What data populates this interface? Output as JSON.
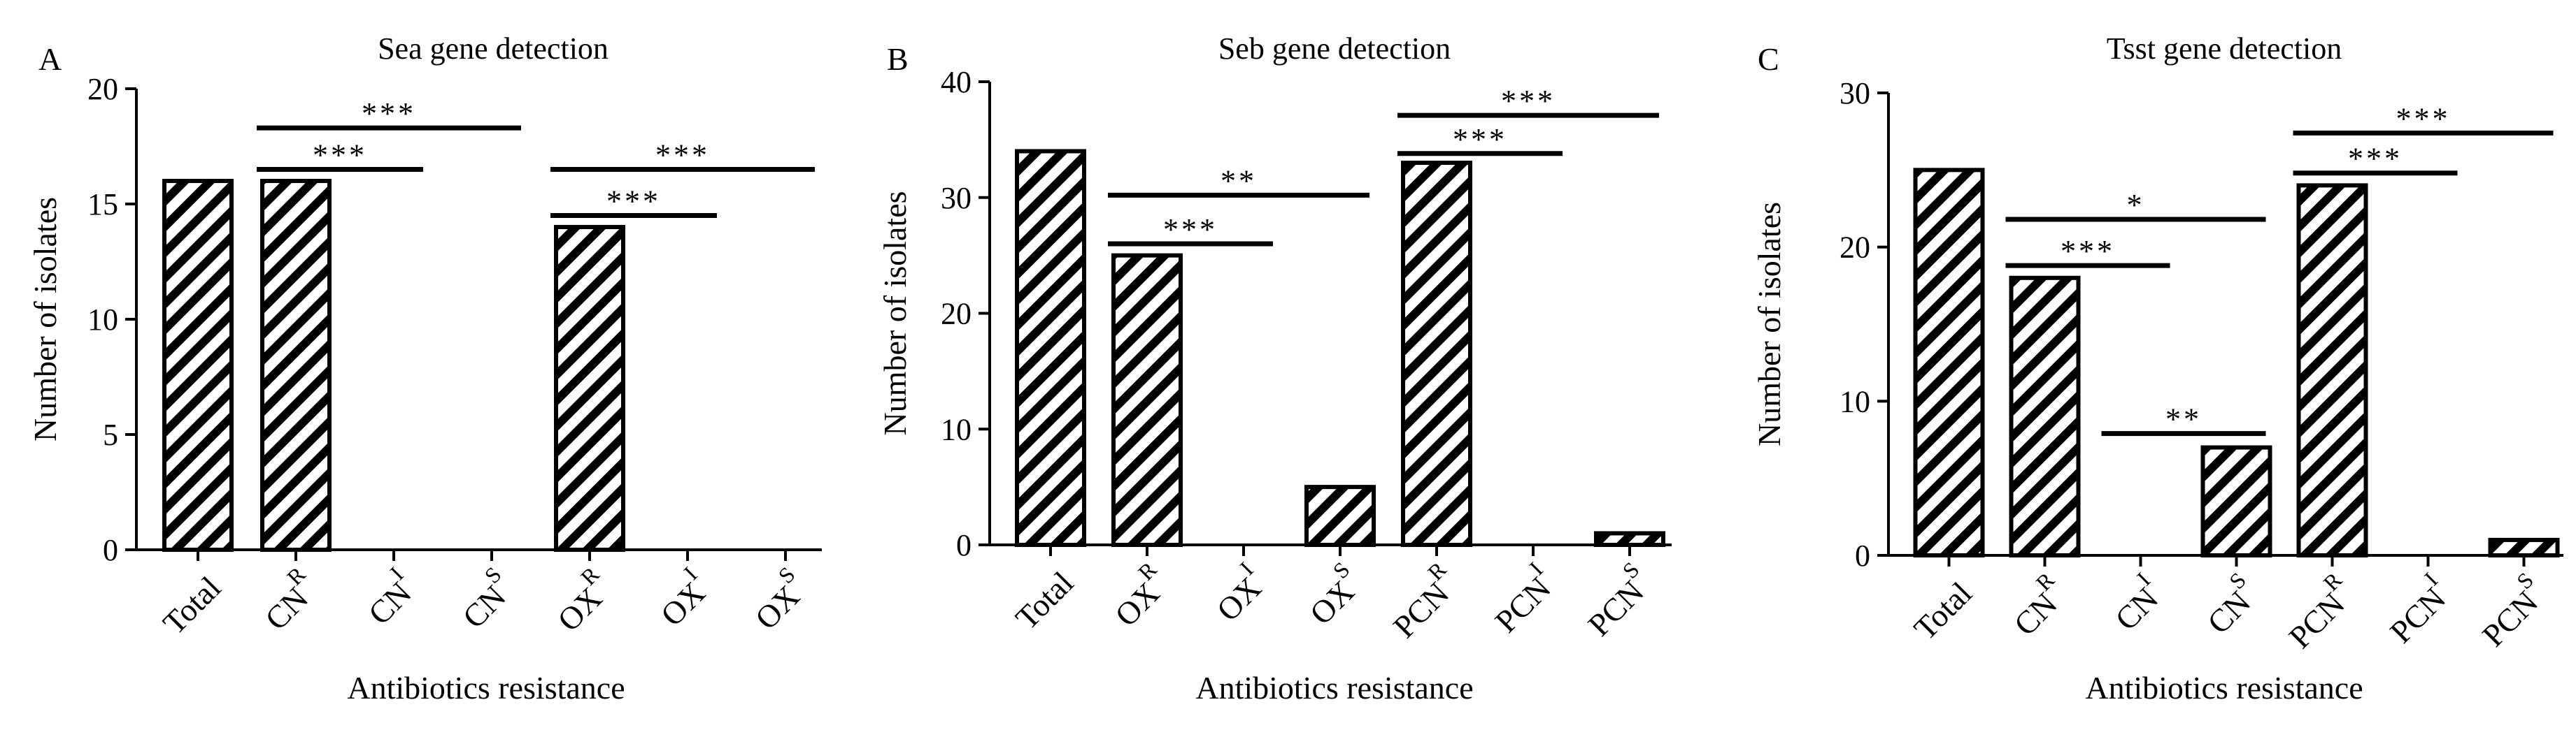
{
  "chart_data": [
    {
      "type": "bar",
      "panel_label": "A",
      "title": "Sea gene detection",
      "xlabel": "Antibiotics resistance",
      "ylabel": "Number of isolates",
      "ylim": [
        0,
        20
      ],
      "yticks": [
        0,
        5,
        10,
        15,
        20
      ],
      "grid": false,
      "categories": [
        {
          "base": "Total",
          "sup": ""
        },
        {
          "base": "CN",
          "sup": "R"
        },
        {
          "base": "CN",
          "sup": "I"
        },
        {
          "base": "CN",
          "sup": "S"
        },
        {
          "base": "OX",
          "sup": "R"
        },
        {
          "base": "OX",
          "sup": "I"
        },
        {
          "base": "OX",
          "sup": "S"
        }
      ],
      "values": [
        16,
        16,
        0,
        0,
        14,
        0,
        0
      ],
      "annotations": [
        {
          "from": 1,
          "to": 2,
          "y": 16.5,
          "label": "***"
        },
        {
          "from": 1,
          "to": 3,
          "y": 18.3,
          "label": "***"
        },
        {
          "from": 4,
          "to": 5,
          "y": 14.5,
          "label": "***"
        },
        {
          "from": 4,
          "to": 6,
          "y": 16.5,
          "label": "***"
        }
      ]
    },
    {
      "type": "bar",
      "panel_label": "B",
      "title": "Seb gene detection",
      "xlabel": "Antibiotics resistance",
      "ylabel": "Number of isolates",
      "ylim": [
        0,
        40
      ],
      "yticks": [
        0,
        10,
        20,
        30,
        40
      ],
      "grid": false,
      "categories": [
        {
          "base": "Total",
          "sup": ""
        },
        {
          "base": "OX",
          "sup": "R"
        },
        {
          "base": "OX",
          "sup": "I"
        },
        {
          "base": "OX",
          "sup": "S"
        },
        {
          "base": "PCN",
          "sup": "R"
        },
        {
          "base": "PCN",
          "sup": "I"
        },
        {
          "base": "PCN",
          "sup": "S"
        }
      ],
      "values": [
        34,
        25,
        0,
        5,
        33,
        0,
        1
      ],
      "annotations": [
        {
          "from": 1,
          "to": 2,
          "y": 26,
          "label": "***"
        },
        {
          "from": 1,
          "to": 3,
          "y": 30.2,
          "label": "**"
        },
        {
          "from": 4,
          "to": 5,
          "y": 33.8,
          "label": "***"
        },
        {
          "from": 4,
          "to": 6,
          "y": 37.1,
          "label": "***"
        }
      ]
    },
    {
      "type": "bar",
      "panel_label": "C",
      "title": "Tsst gene detection",
      "xlabel": "Antibiotics resistance",
      "ylabel": "Number of isolates",
      "ylim": [
        0,
        30
      ],
      "yticks": [
        0,
        10,
        20,
        30
      ],
      "grid": false,
      "categories": [
        {
          "base": "Total",
          "sup": ""
        },
        {
          "base": "CN",
          "sup": "R"
        },
        {
          "base": "CN",
          "sup": "I"
        },
        {
          "base": "CN",
          "sup": "S"
        },
        {
          "base": "PCN",
          "sup": "R"
        },
        {
          "base": "PCN",
          "sup": "I"
        },
        {
          "base": "PCN",
          "sup": "S"
        }
      ],
      "values": [
        25,
        18,
        0,
        7,
        24,
        0,
        1
      ],
      "annotations": [
        {
          "from": 1,
          "to": 2,
          "y": 18.8,
          "label": "***"
        },
        {
          "from": 1,
          "to": 3,
          "y": 21.8,
          "label": "*"
        },
        {
          "from": 2,
          "to": 3,
          "y": 7.9,
          "label": "**"
        },
        {
          "from": 4,
          "to": 5,
          "y": 24.8,
          "label": "***"
        },
        {
          "from": 4,
          "to": 6,
          "y": 27.4,
          "label": "***"
        }
      ]
    }
  ]
}
